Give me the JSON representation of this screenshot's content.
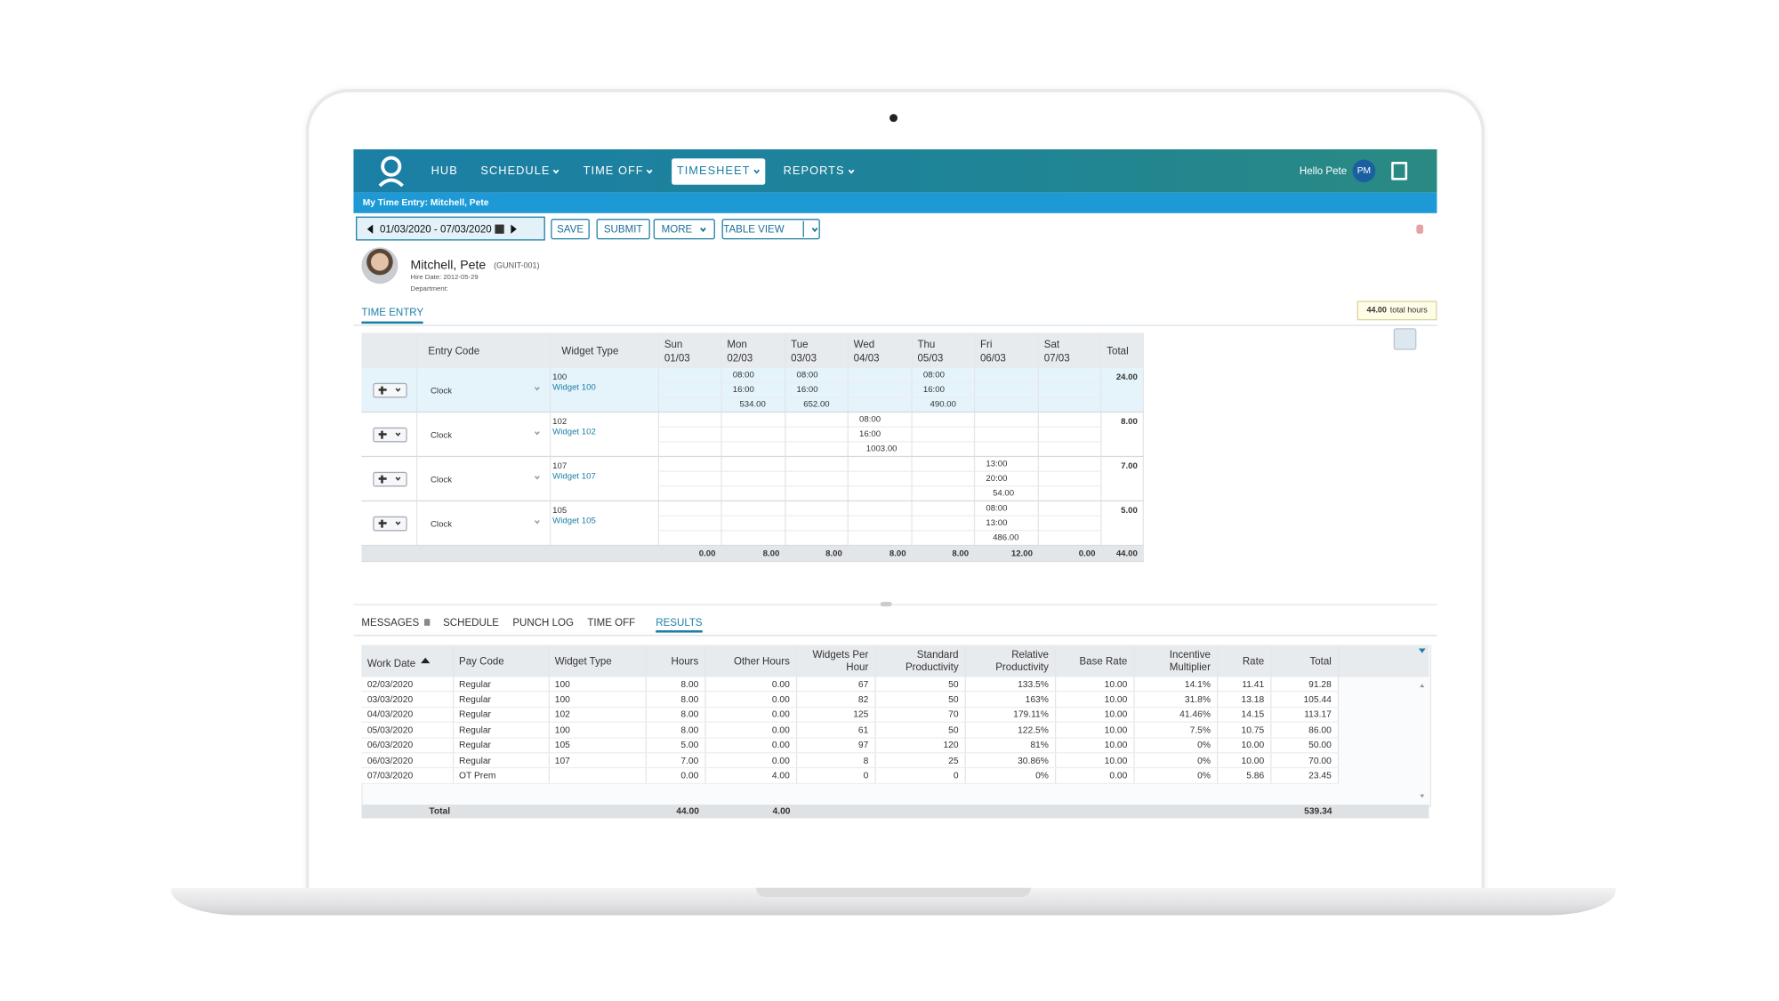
{
  "nav": {
    "items": [
      "HUB",
      "SCHEDULE",
      "TIME OFF",
      "TIMESHEET",
      "REPORTS"
    ],
    "greeting": "Hello Pete",
    "initials": "PM"
  },
  "breadcrumb": "My Time Entry: Mitchell, Pete",
  "toolbar": {
    "date_range": "01/03/2020 - 07/03/2020",
    "buttons": [
      "SAVE",
      "SUBMIT",
      "MORE",
      "TABLE VIEW"
    ]
  },
  "employee": {
    "name": "Mitchell, Pete",
    "id": "(GUNIT-001)",
    "hire_date": "Hire Date: 2012-05-29",
    "department": "Department:"
  },
  "tab": "TIME ENTRY",
  "total_hours": {
    "value": "44.00",
    "label": "total hours"
  },
  "entry_table": {
    "headers": {
      "entry_code": "Entry Code",
      "widget_type": "Widget Type",
      "days": [
        [
          "Sun",
          "01/03"
        ],
        [
          "Mon",
          "02/03"
        ],
        [
          "Tue",
          "03/03"
        ],
        [
          "Wed",
          "04/03"
        ],
        [
          "Thu",
          "05/03"
        ],
        [
          "Fri",
          "06/03"
        ],
        [
          "Sat",
          "07/03"
        ]
      ],
      "total": "Total"
    },
    "rows": [
      {
        "code": "Clock",
        "widget_id": "100",
        "widget_name": "Widget 100",
        "days": [
          null,
          [
            "08:00",
            "16:00",
            "534.00"
          ],
          [
            "08:00",
            "16:00",
            "652.00"
          ],
          null,
          [
            "08:00",
            "16:00",
            "490.00"
          ],
          null,
          null
        ],
        "total": "24.00"
      },
      {
        "code": "Clock",
        "widget_id": "102",
        "widget_name": "Widget 102",
        "days": [
          null,
          null,
          null,
          [
            "08:00",
            "16:00",
            "1003.00"
          ],
          null,
          null,
          null
        ],
        "total": "8.00"
      },
      {
        "code": "Clock",
        "widget_id": "107",
        "widget_name": "Widget 107",
        "days": [
          null,
          null,
          null,
          null,
          null,
          [
            "13:00",
            "20:00",
            "54.00"
          ],
          null
        ],
        "total": "7.00"
      },
      {
        "code": "Clock",
        "widget_id": "105",
        "widget_name": "Widget 105",
        "days": [
          null,
          null,
          null,
          null,
          null,
          [
            "08:00",
            "13:00",
            "486.00"
          ],
          null
        ],
        "total": "5.00"
      }
    ],
    "footer": [
      "0.00",
      "8.00",
      "8.00",
      "8.00",
      "8.00",
      "12.00",
      "0.00",
      "44.00"
    ]
  },
  "bottom_tabs": [
    "MESSAGES",
    "SCHEDULE",
    "PUNCH LOG",
    "TIME OFF",
    "RESULTS"
  ],
  "results": {
    "headers": [
      "Work Date",
      "Pay Code",
      "Widget Type",
      "Hours",
      "Other Hours",
      "Widgets Per Hour",
      "Standard Productivity",
      "Relative Productivity",
      "Base Rate",
      "Incentive Multiplier",
      "Rate",
      "Total"
    ],
    "rows": [
      [
        "02/03/2020",
        "Regular",
        "100",
        "8.00",
        "0.00",
        "67",
        "50",
        "133.5%",
        "10.00",
        "14.1%",
        "11.41",
        "91.28"
      ],
      [
        "03/03/2020",
        "Regular",
        "100",
        "8.00",
        "0.00",
        "82",
        "50",
        "163%",
        "10.00",
        "31.8%",
        "13.18",
        "105.44"
      ],
      [
        "04/03/2020",
        "Regular",
        "102",
        "8.00",
        "0.00",
        "125",
        "70",
        "179.11%",
        "10.00",
        "41.46%",
        "14.15",
        "113.17"
      ],
      [
        "05/03/2020",
        "Regular",
        "100",
        "8.00",
        "0.00",
        "61",
        "50",
        "122.5%",
        "10.00",
        "7.5%",
        "10.75",
        "86.00"
      ],
      [
        "06/03/2020",
        "Regular",
        "105",
        "5.00",
        "0.00",
        "97",
        "120",
        "81%",
        "10.00",
        "0%",
        "10.00",
        "50.00"
      ],
      [
        "06/03/2020",
        "Regular",
        "107",
        "7.00",
        "0.00",
        "8",
        "25",
        "30.86%",
        "10.00",
        "0%",
        "10.00",
        "70.00"
      ],
      [
        "07/03/2020",
        "OT Prem",
        null,
        "0.00",
        "4.00",
        "0",
        "0",
        "0%",
        "0.00",
        "0%",
        "5.86",
        "23.45"
      ]
    ],
    "footer": {
      "label": "Total",
      "hours": "44.00",
      "other_hours": "4.00",
      "total": "539.34"
    }
  }
}
